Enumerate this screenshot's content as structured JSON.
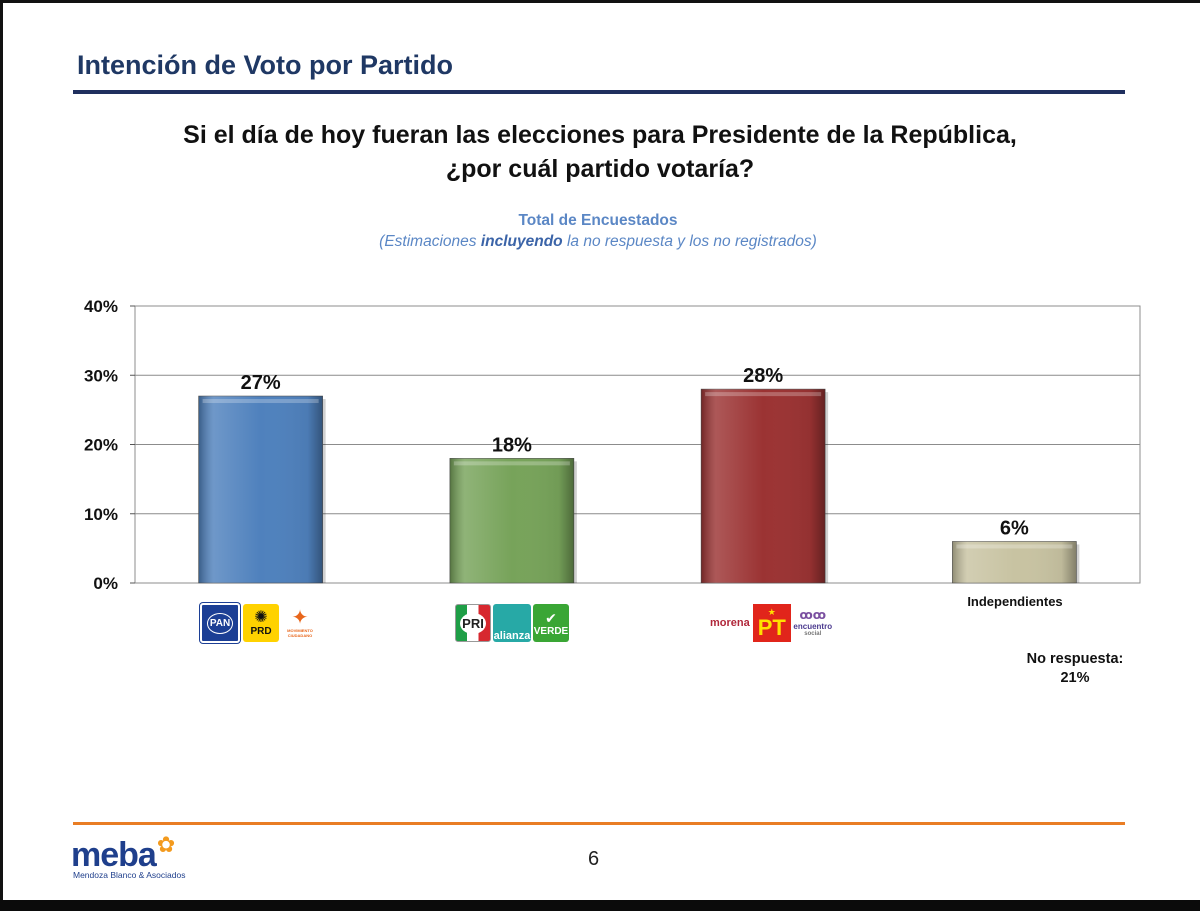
{
  "slide": {
    "title": "Intención de Voto por Partido",
    "question_line1": "Si el día de hoy fueran las elecciones para Presidente de la República,",
    "question_line2": "¿por cuál partido votaría?",
    "subtitle": "Total de Encuestados",
    "note_prefix": "(Estimaciones ",
    "note_bold": "incluyendo",
    "note_suffix": " la no respuesta y los no registrados)",
    "page_number": "6"
  },
  "chart_data": {
    "type": "bar",
    "title": "Total de Encuestados",
    "categories": [
      "PAN-PRD-MC",
      "PRI-Nueva Alianza-PVEM",
      "Morena-PT-Encuentro Social",
      "Independientes"
    ],
    "values": [
      27,
      18,
      28,
      6
    ],
    "value_labels": [
      "27%",
      "18%",
      "28%",
      "6%"
    ],
    "bar_colors": [
      "#4f81bd",
      "#77a35a",
      "#9b3333",
      "#c8c3a2"
    ],
    "ylim": [
      0,
      40
    ],
    "yticks": [
      0,
      10,
      20,
      30,
      40
    ],
    "ytick_labels": [
      "0%",
      "10%",
      "20%",
      "30%",
      "40%"
    ],
    "grid": true,
    "xlabel": "",
    "ylabel": ""
  },
  "logos": {
    "coalition1": [
      "PAN",
      "PRD",
      "MOVIMIENTO CIUDADANO"
    ],
    "coalition2": [
      "PRI",
      "alianza",
      "VERDE"
    ],
    "coalition3": [
      "morena",
      "PT",
      "encuentro",
      "social"
    ],
    "independientes": "Independientes"
  },
  "no_response": {
    "label": "No respuesta:",
    "value": "21%"
  },
  "footer": {
    "brand": "meba",
    "brand_sub": "Mendoza Blanco & Asociados"
  },
  "colors": {
    "title": "#1f3864",
    "accent_blue": "#5b87c5",
    "footer_rule": "#e97d24"
  }
}
